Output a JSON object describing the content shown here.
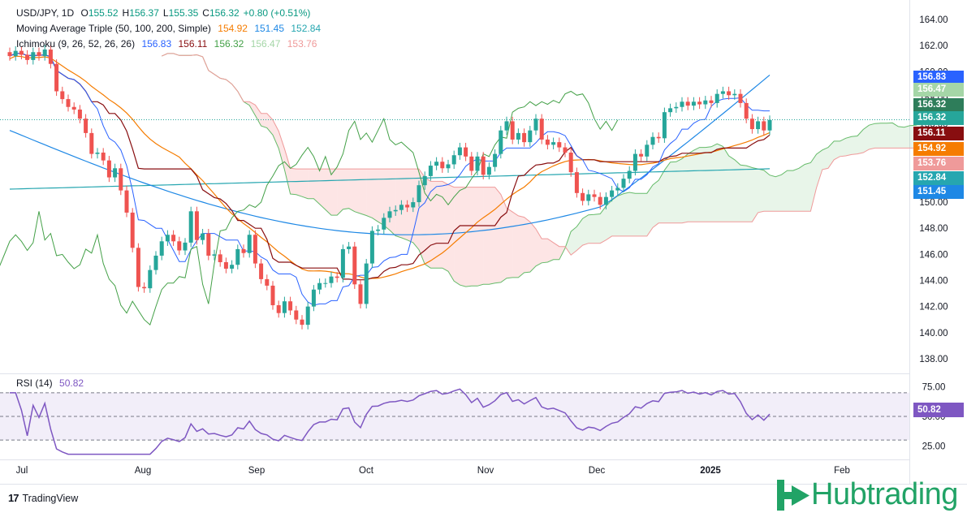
{
  "header": {
    "symbol": "USD/JPY, 1D",
    "o_label": "O",
    "o_value": "155.52",
    "h_label": "H",
    "h_value": "156.37",
    "l_label": "L",
    "l_value": "155.35",
    "c_label": "C",
    "c_value": "156.32",
    "change": "+0.80 (+0.51%)",
    "ma_label": "Moving Average Triple (50, 100, 200, Simple)",
    "ma_values": [
      "154.92",
      "151.45",
      "152.84"
    ],
    "ichi_label": "Ichimoku (9, 26, 52, 26, 26)",
    "ichi_values": [
      "156.83",
      "156.11",
      "156.32",
      "156.47",
      "153.76"
    ],
    "rsi_label": "RSI (14)",
    "rsi_value": "50.82"
  },
  "price_tags": [
    {
      "text": "156.83",
      "color": "#2962ff"
    },
    {
      "text": "156.47",
      "color": "#a5d6a7"
    },
    {
      "text": "156.32",
      "color": "#2e7d5a"
    },
    {
      "text": "156.32",
      "color": "#26a69a"
    },
    {
      "text": "156.11",
      "color": "#880e10"
    },
    {
      "text": "154.92",
      "color": "#f57c00"
    },
    {
      "text": "153.76",
      "color": "#ef9a9a"
    },
    {
      "text": "152.84",
      "color": "#26a6b0"
    },
    {
      "text": "151.45",
      "color": "#1e88e5"
    }
  ],
  "rsi_tag": {
    "text": "50.82",
    "color": "#7e57c2"
  },
  "branding": {
    "tradingview": "TradingView",
    "hubtrading": "Hubtrading"
  },
  "colors": {
    "up": "#26a69a",
    "down": "#ef5350",
    "ma50": "#f57c00",
    "ma100": "#1e88e5",
    "ma200": "#26a6b0",
    "tenkan": "#2962ff",
    "kijun": "#880e10",
    "chikou": "#43a047",
    "spanA": "#66bb6a",
    "spanB": "#ef9a9a",
    "rsi": "#7e57c2"
  },
  "chart_data": {
    "type": "candlestick",
    "y_ticks": [
      "164.00",
      "162.00",
      "160.00",
      "158.00",
      "156.00",
      "154.00",
      "152.00",
      "150.00",
      "148.00",
      "146.00",
      "144.00",
      "142.00",
      "140.00",
      "138.00"
    ],
    "ylim": [
      137,
      165
    ],
    "x_ticks": [
      "Jul",
      "Aug",
      "Sep",
      "Oct",
      "Nov",
      "Dec",
      "2025",
      "Feb"
    ],
    "last_price": 156.32,
    "close": [
      161.2,
      161.6,
      161.3,
      160.9,
      161.5,
      161.2,
      161.7,
      160.6,
      158.5,
      157.9,
      157.3,
      157.1,
      156.4,
      155.3,
      153.7,
      153.8,
      153.2,
      151.9,
      152.6,
      150.9,
      149.2,
      146.5,
      143.5,
      143.4,
      144.8,
      145.9,
      147.0,
      147.5,
      147.0,
      146.3,
      146.9,
      149.3,
      147.1,
      147.6,
      145.9,
      146.0,
      145.4,
      144.9,
      145.2,
      146.4,
      146.1,
      147.5,
      145.3,
      144.1,
      143.6,
      142.1,
      141.5,
      142.4,
      141.7,
      141.0,
      140.6,
      142.0,
      143.3,
      143.8,
      143.8,
      144.3,
      144.2,
      146.4,
      146.6,
      143.7,
      142.2,
      145.3,
      147.8,
      147.9,
      148.8,
      149.3,
      149.4,
      149.8,
      149.6,
      150.0,
      151.3,
      152.0,
      152.8,
      153.1,
      152.6,
      152.9,
      153.6,
      154.2,
      153.5,
      152.4,
      153.5,
      152.1,
      152.7,
      153.7,
      155.5,
      156.2,
      154.8,
      155.3,
      154.6,
      155.5,
      156.4,
      154.8,
      154.4,
      154.6,
      154.2,
      153.8,
      152.3,
      150.7,
      150.1,
      150.6,
      150.4,
      149.8,
      150.4,
      150.9,
      151.1,
      151.8,
      152.4,
      153.7,
      153.5,
      154.4,
      155.0,
      154.9,
      156.9,
      157.2,
      157.3,
      157.7,
      157.4,
      157.7,
      157.5,
      157.8,
      157.6,
      158.3,
      158.5,
      158.2,
      158.3,
      157.6,
      156.4,
      155.6,
      156.2,
      155.5,
      156.3
    ]
  }
}
